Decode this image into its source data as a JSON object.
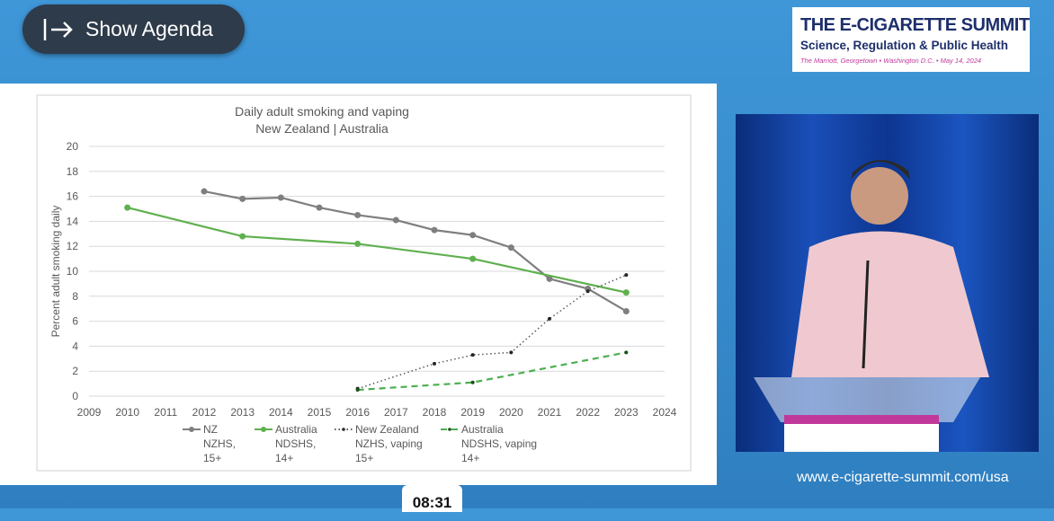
{
  "button": {
    "label": "Show Agenda"
  },
  "logo": {
    "title": "THE E-CIGARETTE SUMMIT",
    "subtitle": "Science, Regulation & Public Health",
    "venue": "The Marriott, Georgetown • Washington D.C. • May 14, 2024"
  },
  "url": "www.e-cigarette-summit.com/usa",
  "timer": "08:31",
  "chart_data": {
    "type": "line",
    "title": "Daily adult smoking and vaping",
    "subtitle": "New Zealand | Australia",
    "y_label": "Percent adult smoking daily",
    "xlim": [
      2009,
      2024
    ],
    "xticks": [
      2009,
      2010,
      2011,
      2012,
      2013,
      2014,
      2015,
      2016,
      2017,
      2018,
      2019,
      2020,
      2021,
      2022,
      2023,
      2024
    ],
    "ylim": [
      0,
      20
    ],
    "yticks": [
      0,
      2,
      4,
      6,
      8,
      10,
      12,
      14,
      16,
      18,
      20
    ],
    "grid": true,
    "series": [
      {
        "name": "NZ\nNZHS,\n15+",
        "color": "#7f7f7f",
        "dash": "solid",
        "marker_color": "#7f7f7f",
        "x": [
          2012,
          2013,
          2014,
          2015,
          2016,
          2017,
          2018,
          2019,
          2020,
          2021,
          2022,
          2023
        ],
        "values": [
          16.4,
          15.8,
          15.9,
          15.1,
          14.5,
          14.1,
          13.3,
          12.9,
          11.9,
          9.4,
          8.6,
          6.8
        ]
      },
      {
        "name": "Australia\nNDSHS,\n14+",
        "color": "#5fb04f",
        "dash": "solid",
        "marker_color": "#5fb04f",
        "x": [
          2010,
          2013,
          2016,
          2019,
          2023
        ],
        "values": [
          15.1,
          12.8,
          12.2,
          11.0,
          8.3
        ]
      },
      {
        "name": "New Zealand\nNZHS, vaping\n15+",
        "color": "#595959",
        "dash": "dotted",
        "marker_color": "#262626",
        "x": [
          2016,
          2018,
          2019,
          2020,
          2021,
          2022,
          2023
        ],
        "values": [
          0.6,
          2.6,
          3.3,
          3.5,
          6.2,
          8.4,
          9.7
        ]
      },
      {
        "name": "Australia\nNDSHS, vaping\n14+",
        "color": "#4caf50",
        "dash": "dashed",
        "marker_color": "#1e4d1e",
        "x": [
          2016,
          2019,
          2023
        ],
        "values": [
          0.5,
          1.1,
          3.5
        ]
      }
    ]
  }
}
